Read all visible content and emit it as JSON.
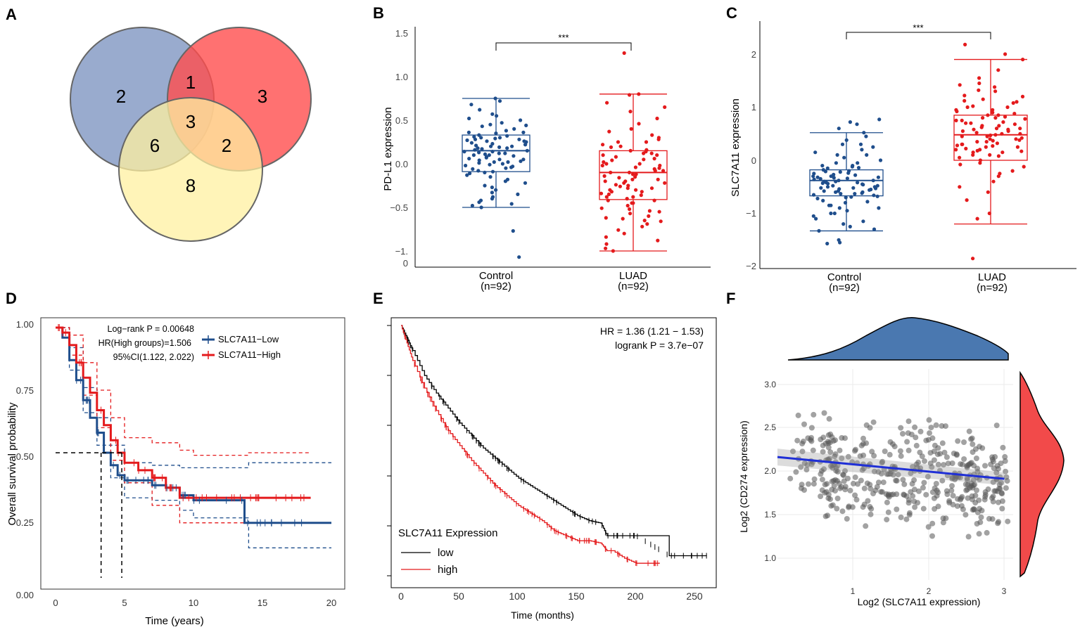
{
  "panel_letters": {
    "A": "A",
    "B": "B",
    "C": "C",
    "D": "D",
    "E": "E",
    "F": "F"
  },
  "colors": {
    "venn_blue": "#8096c2",
    "venn_red": "#ff4d4d",
    "venn_yellow": "#fff0a0",
    "control_blue": "#1f4e8c",
    "luad_red": "#e41a1c",
    "km_black": "#000000",
    "km_red": "#e41a1c",
    "scatter_point": "#555555",
    "regression_line": "#1f2fd6",
    "density_top": "#4a78b0",
    "density_right": "#f24a4a"
  },
  "chart_data": [
    {
      "panel": "A",
      "type": "venn",
      "regions": {
        "blue_only": "2",
        "red_only": "3",
        "yellow_only": "8",
        "blue_red": "1",
        "blue_yellow": "6",
        "red_yellow": "2",
        "all_three": "3"
      }
    },
    {
      "panel": "B",
      "type": "box",
      "ylabel": "PD-L1 expression",
      "yticks": [
        "1.5",
        "1.0",
        "0.5",
        "0.0",
        "−0.5",
        "−1."
      ],
      "ytick_extra": "0",
      "ylim": [
        -1.15,
        1.5
      ],
      "significance": "***",
      "groups": [
        {
          "name": "Control",
          "n_label": "(n=92)",
          "q1": -0.09,
          "median": 0.15,
          "q3": 0.33,
          "whisker_low": -0.5,
          "whisker_high": 0.75,
          "points": [
            0.75,
            0.72,
            0.68,
            0.62,
            0.57,
            0.55,
            0.52,
            0.5,
            0.47,
            0.45,
            0.43,
            0.4,
            0.38,
            0.36,
            0.35,
            0.33,
            0.32,
            0.31,
            0.3,
            0.29,
            0.28,
            0.27,
            0.26,
            0.25,
            0.24,
            0.23,
            0.22,
            0.21,
            0.2,
            0.19,
            0.18,
            0.17,
            0.16,
            0.15,
            0.14,
            0.13,
            0.12,
            0.11,
            0.1,
            0.09,
            0.08,
            0.07,
            0.06,
            0.05,
            0.04,
            0.03,
            0.02,
            0.01,
            0.0,
            -0.01,
            -0.03,
            -0.05,
            -0.06,
            -0.08,
            -0.09,
            -0.11,
            -0.13,
            -0.15,
            -0.18,
            -0.2,
            -0.22,
            -0.25,
            -0.27,
            -0.3,
            -0.33,
            -0.35,
            -0.38,
            -0.4,
            -0.42,
            -0.44,
            -0.46,
            -0.48,
            -0.5,
            -0.77,
            -1.07,
            0.44,
            0.36,
            0.28,
            0.2,
            0.12,
            0.05,
            -0.02,
            -0.1,
            0.26,
            0.18,
            0.1,
            0.02,
            -0.04,
            0.3,
            0.22,
            0.14
          ]
        },
        {
          "name": "LUAD",
          "n_label": "(n=92)",
          "q1": -0.41,
          "median": -0.1,
          "q3": 0.15,
          "whisker_low": -1.0,
          "whisker_high": 0.8,
          "points": [
            1.27,
            0.8,
            0.79,
            0.7,
            0.65,
            0.6,
            0.52,
            0.46,
            0.4,
            0.37,
            0.33,
            0.28,
            0.25,
            0.22,
            0.19,
            0.16,
            0.14,
            0.12,
            0.1,
            0.08,
            0.06,
            0.04,
            0.02,
            0.0,
            -0.02,
            -0.04,
            -0.06,
            -0.08,
            -0.1,
            -0.12,
            -0.14,
            -0.16,
            -0.18,
            -0.2,
            -0.22,
            -0.24,
            -0.26,
            -0.28,
            -0.3,
            -0.32,
            -0.34,
            -0.36,
            -0.38,
            -0.4,
            -0.42,
            -0.45,
            -0.48,
            -0.51,
            -0.54,
            -0.57,
            -0.6,
            -0.63,
            -0.66,
            -0.69,
            -0.72,
            -0.76,
            -0.8,
            -0.84,
            -0.88,
            -0.92,
            -0.97,
            -1.0,
            0.2,
            0.1,
            0.0,
            -0.1,
            -0.2,
            -0.3,
            -0.05,
            -0.15,
            -0.25,
            -0.35,
            0.3,
            0.05,
            -0.45,
            -0.55,
            -0.65,
            0.15,
            -0.08,
            -0.18,
            -0.28,
            -0.38,
            0.25,
            0.12,
            -0.02,
            -0.12,
            -0.22,
            -0.32,
            -0.42,
            -0.52,
            -0.62
          ]
        }
      ]
    },
    {
      "panel": "C",
      "type": "box",
      "ylabel": "SLC7A11 expression",
      "yticks": [
        "2",
        "1",
        "0",
        "−1",
        "−2"
      ],
      "ylim": [
        -2.0,
        2.6
      ],
      "significance": "***",
      "groups": [
        {
          "name": "Control",
          "n_label": "(n=92)",
          "q1": -0.67,
          "median": -0.38,
          "q3": -0.18,
          "whisker_low": -1.33,
          "whisker_high": 0.52,
          "points": [
            0.77,
            0.72,
            0.68,
            0.6,
            0.52,
            0.45,
            0.38,
            0.3,
            0.25,
            0.2,
            0.15,
            0.1,
            0.05,
            0.0,
            -0.05,
            -0.1,
            -0.14,
            -0.18,
            -0.21,
            -0.24,
            -0.27,
            -0.3,
            -0.32,
            -0.34,
            -0.36,
            -0.38,
            -0.4,
            -0.42,
            -0.44,
            -0.46,
            -0.48,
            -0.5,
            -0.52,
            -0.54,
            -0.56,
            -0.58,
            -0.6,
            -0.63,
            -0.66,
            -0.69,
            -0.72,
            -0.76,
            -0.8,
            -0.85,
            -0.9,
            -0.95,
            -1.0,
            -1.05,
            -1.1,
            -1.15,
            -1.2,
            -1.25,
            -1.3,
            -1.33,
            -1.55,
            -1.57,
            -1.5,
            -0.25,
            -0.35,
            -0.45,
            -0.55,
            -0.65,
            -0.2,
            -0.3,
            -0.4,
            -0.5,
            -0.6,
            -0.7,
            -0.15,
            -0.28,
            -0.38,
            -0.48,
            -0.58,
            -0.68,
            -0.78,
            -0.22,
            -0.32,
            -0.42,
            -0.52,
            -0.62,
            -0.1,
            -0.9,
            -1.0,
            -0.05,
            -0.33,
            -0.43,
            -0.53,
            -0.63,
            0.1,
            0.3,
            -0.85,
            -0.12
          ]
        },
        {
          "name": "LUAD",
          "n_label": "(n=92)",
          "q1": 0.0,
          "median": 0.48,
          "q3": 0.85,
          "whisker_low": -1.2,
          "whisker_high": 1.9,
          "points": [
            2.18,
            2.0,
            1.9,
            1.7,
            1.55,
            1.45,
            1.38,
            1.3,
            1.22,
            1.15,
            1.08,
            1.0,
            0.95,
            0.9,
            0.85,
            0.8,
            0.75,
            0.7,
            0.65,
            0.6,
            0.55,
            0.5,
            0.45,
            0.4,
            0.35,
            0.3,
            0.25,
            0.2,
            0.15,
            0.1,
            0.05,
            0.0,
            -0.05,
            -0.12,
            -0.2,
            -0.3,
            -0.4,
            -0.5,
            -0.6,
            -0.75,
            -1.0,
            -1.1,
            -1.85,
            0.9,
            0.8,
            0.7,
            0.6,
            0.5,
            0.4,
            0.3,
            0.2,
            0.1,
            0.85,
            0.75,
            0.65,
            0.55,
            0.45,
            0.35,
            0.25,
            0.15,
            1.2,
            1.1,
            1.0,
            0.95,
            0.88,
            0.78,
            0.68,
            0.58,
            0.48,
            0.38,
            0.28,
            0.18,
            0.08,
            -0.08,
            -0.25,
            0.62,
            0.52,
            0.42,
            0.32,
            0.22,
            0.72,
            0.82,
            0.92,
            1.02,
            1.12,
            1.32,
            1.42,
            0.58,
            0.47,
            0.37,
            0.27,
            0.17
          ]
        }
      ]
    },
    {
      "panel": "D",
      "type": "line",
      "xlabel": "Time (years)",
      "ylabel": "Overall survival probability",
      "xticks": [
        "0",
        "5",
        "10",
        "15",
        "20"
      ],
      "yticks": [
        "1.00",
        "0.75",
        "0.50",
        "0.25",
        "0.00"
      ],
      "xlim": [
        0,
        20
      ],
      "ylim": [
        0,
        1
      ],
      "annotation": [
        "Log−rank P = 0.00648",
        "HR(High groups)=1.506",
        "95%CI(1.122, 2.022)"
      ],
      "legend": [
        "SLC7A11−Low",
        "SLC7A11−High"
      ],
      "median_lines": {
        "y": 0.5,
        "x_low": 3.3,
        "x_high": 4.8
      },
      "series": [
        {
          "name": "SLC7A11-Low",
          "x": [
            0,
            0.5,
            1,
            1.5,
            2,
            2.5,
            3,
            3.5,
            4,
            4.5,
            5,
            6,
            7,
            8,
            9,
            10,
            11,
            12,
            13,
            13.7,
            14,
            16,
            18,
            20
          ],
          "y": [
            1.0,
            0.96,
            0.87,
            0.79,
            0.71,
            0.64,
            0.58,
            0.5,
            0.45,
            0.41,
            0.39,
            0.39,
            0.37,
            0.36,
            0.33,
            0.31,
            0.31,
            0.31,
            0.31,
            0.22,
            0.22,
            0.22,
            0.22,
            0.22
          ]
        },
        {
          "name": "SLC7A11-High",
          "x": [
            0,
            0.5,
            1,
            1.5,
            2,
            2.5,
            3,
            3.5,
            4,
            4.5,
            5,
            6,
            7,
            8,
            9,
            10,
            12,
            14,
            16,
            18.5
          ],
          "y": [
            1.0,
            0.98,
            0.93,
            0.86,
            0.8,
            0.74,
            0.67,
            0.61,
            0.55,
            0.5,
            0.46,
            0.43,
            0.4,
            0.36,
            0.32,
            0.32,
            0.32,
            0.32,
            0.32,
            0.32
          ]
        },
        {
          "name": "Low CI upper",
          "x": [
            0,
            1,
            2,
            3,
            4,
            5,
            7,
            9,
            10,
            14,
            20
          ],
          "y": [
            1.0,
            0.92,
            0.76,
            0.64,
            0.53,
            0.46,
            0.45,
            0.44,
            0.44,
            0.46,
            0.46
          ]
        },
        {
          "name": "Low CI lower",
          "x": [
            0,
            1,
            2,
            3,
            4,
            5,
            7,
            9,
            10,
            13.7,
            14,
            20
          ],
          "y": [
            1.0,
            0.83,
            0.66,
            0.53,
            0.4,
            0.32,
            0.31,
            0.27,
            0.24,
            0.24,
            0.12,
            0.12
          ]
        },
        {
          "name": "High CI upper",
          "x": [
            0,
            1,
            2,
            3,
            4,
            5,
            7,
            9,
            10,
            14,
            18.5
          ],
          "y": [
            1.0,
            0.97,
            0.86,
            0.75,
            0.64,
            0.56,
            0.54,
            0.51,
            0.49,
            0.5,
            0.5
          ]
        },
        {
          "name": "High CI lower",
          "x": [
            0,
            1,
            2,
            3,
            4,
            5,
            7,
            9,
            10,
            14,
            18.5
          ],
          "y": [
            1.0,
            0.89,
            0.73,
            0.6,
            0.47,
            0.38,
            0.29,
            0.22,
            0.22,
            0.22,
            0.22
          ]
        }
      ]
    },
    {
      "panel": "E",
      "type": "line",
      "xlabel": "Time (months)",
      "xticks": [
        "0",
        "50",
        "100",
        "150",
        "200",
        "250"
      ],
      "xlim": [
        0,
        260
      ],
      "ylim": [
        0,
        1
      ],
      "annotation": [
        "HR = 1.36 (1.21 − 1.53)",
        "logrank P = 3.7e−07"
      ],
      "legend_title": "SLC7A11 Expression",
      "legend": [
        "low",
        "high"
      ],
      "series": [
        {
          "name": "low",
          "x": [
            0,
            5,
            10,
            20,
            30,
            40,
            50,
            60,
            70,
            80,
            90,
            100,
            110,
            120,
            130,
            140,
            150,
            160,
            170,
            175,
            180,
            200,
            228,
            260
          ],
          "y": [
            1.0,
            0.95,
            0.9,
            0.8,
            0.73,
            0.67,
            0.61,
            0.56,
            0.51,
            0.47,
            0.43,
            0.39,
            0.36,
            0.33,
            0.3,
            0.27,
            0.24,
            0.22,
            0.21,
            0.16,
            0.16,
            0.16,
            0.08,
            0.08
          ]
        },
        {
          "name": "high",
          "x": [
            0,
            5,
            10,
            20,
            30,
            40,
            50,
            60,
            70,
            80,
            90,
            100,
            110,
            120,
            130,
            140,
            150,
            160,
            170,
            175,
            180,
            190,
            200,
            210,
            220
          ],
          "y": [
            1.0,
            0.93,
            0.86,
            0.75,
            0.66,
            0.58,
            0.52,
            0.46,
            0.41,
            0.36,
            0.32,
            0.28,
            0.25,
            0.22,
            0.18,
            0.16,
            0.14,
            0.14,
            0.13,
            0.1,
            0.1,
            0.07,
            0.05,
            0.05,
            0.05
          ]
        }
      ]
    },
    {
      "panel": "F",
      "type": "scatter",
      "xlabel": "Log2 (SLC7A11 expression)",
      "ylabel": "Log2 (CD274 expression)",
      "xticks": [
        "1",
        "2",
        "3"
      ],
      "yticks": [
        "3.0",
        "2.5",
        "2.0",
        "1.5",
        "1.0"
      ],
      "xlim": [
        0.0,
        3.1
      ],
      "ylim": [
        0.8,
        3.2
      ],
      "regression": {
        "x0": 0.0,
        "y0": 2.16,
        "x1": 3.0,
        "y1": 1.91
      }
    }
  ]
}
